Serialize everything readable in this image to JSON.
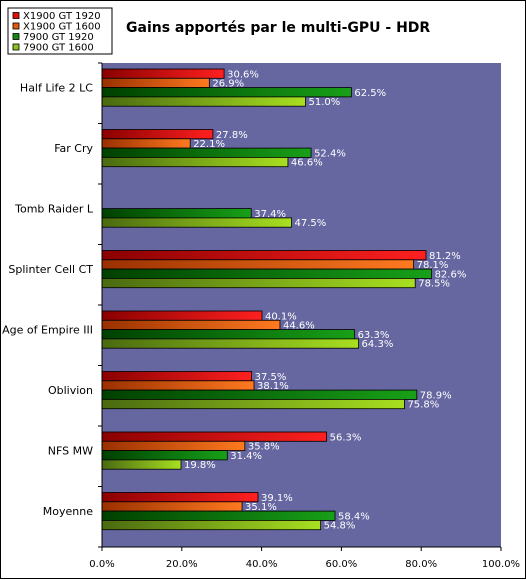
{
  "chart_data": {
    "type": "bar",
    "orientation": "horizontal",
    "title": "Gains apportés par le multi-GPU - HDR",
    "xlim": [
      0,
      100
    ],
    "xticks": [
      "0.0%",
      "20.0%",
      "40.0%",
      "60.0%",
      "80.0%",
      "100.0%"
    ],
    "xtick_values": [
      0,
      20,
      40,
      60,
      80,
      100
    ],
    "legend_position": "top-left",
    "plot_background": "#6666a0",
    "categories": [
      "Half Life 2 LC",
      "Far Cry",
      "Tomb Raider L",
      "Splinter Cell CT",
      "Age of Empire III",
      "Oblivion",
      "NFS MW",
      "Moyenne"
    ],
    "series": [
      {
        "name": "X1900 GT 1920",
        "color": "#e01010",
        "colors": [
          "#8a0000",
          "#ff2020"
        ],
        "values": [
          30.6,
          27.8,
          null,
          81.2,
          40.1,
          37.5,
          56.3,
          39.1
        ],
        "labels": [
          "30.6%",
          "27.8%",
          null,
          "81.2%",
          "40.1%",
          "37.5%",
          "56.3%",
          "39.1%"
        ]
      },
      {
        "name": "X1900 GT 1600",
        "color": "#e05a10",
        "colors": [
          "#9a3000",
          "#ff7a20"
        ],
        "values": [
          26.9,
          22.1,
          null,
          78.1,
          44.6,
          38.1,
          35.8,
          35.1
        ],
        "labels": [
          "26.9%",
          "22.1%",
          null,
          "78.1%",
          "44.6%",
          "38.1%",
          "35.8%",
          "35.1%"
        ]
      },
      {
        "name": "7900 GT 1920",
        "color": "#108a10",
        "colors": [
          "#004000",
          "#18a018"
        ],
        "values": [
          62.5,
          52.4,
          37.4,
          82.6,
          63.3,
          78.9,
          31.4,
          58.4
        ],
        "labels": [
          "62.5%",
          "52.4%",
          "37.4%",
          "82.6%",
          "63.3%",
          "78.9%",
          "31.4%",
          "58.4%"
        ]
      },
      {
        "name": "7900 GT 1600",
        "color": "#8ac020",
        "colors": [
          "#4a6a10",
          "#a8e020"
        ],
        "values": [
          51.0,
          46.6,
          47.5,
          78.5,
          64.3,
          75.8,
          19.8,
          54.8
        ],
        "labels": [
          "51.0%",
          "46.6%",
          "47.5%",
          "78.5%",
          "64.3%",
          "75.8%",
          "19.8%",
          "54.8%"
        ]
      }
    ]
  }
}
